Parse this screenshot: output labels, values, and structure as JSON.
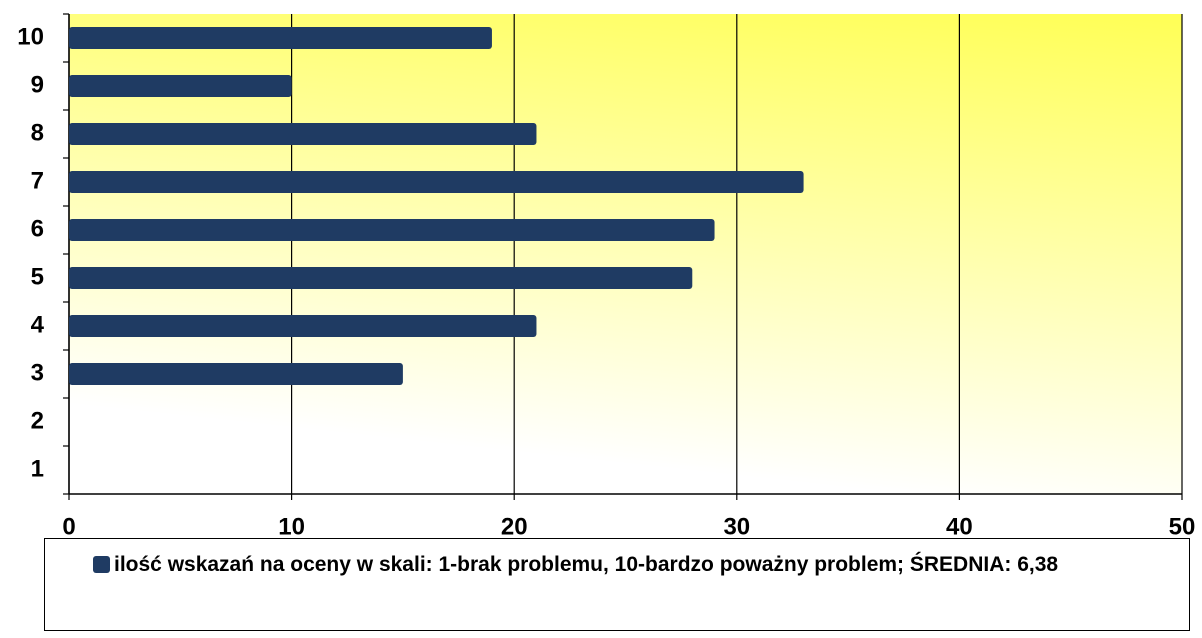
{
  "chart_data": {
    "type": "bar",
    "orientation": "horizontal",
    "categories": [
      "10",
      "9",
      "8",
      "7",
      "6",
      "5",
      "4",
      "3",
      "2",
      "1"
    ],
    "series": [
      {
        "name": "ilość wskazań na oceny w skali: 1-brak problemu, 10-bardzo poważny problem; ŚREDNIA: 6,38",
        "color": "#1f3b63",
        "values": [
          19,
          10,
          21,
          33,
          29,
          28,
          21,
          15,
          0,
          0
        ]
      }
    ],
    "xlim": [
      0,
      50
    ],
    "xticks": [
      0,
      10,
      20,
      30,
      40,
      50
    ],
    "grid": true,
    "legend": "bottom"
  }
}
